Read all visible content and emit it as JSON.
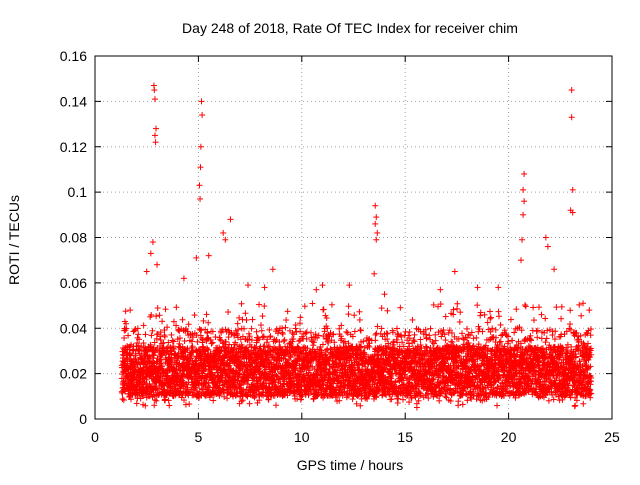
{
  "chart_data": {
    "type": "scatter",
    "title": "Day 248 of 2018, Rate Of TEC Index for receiver chim",
    "xlabel": "GPS time / hours",
    "ylabel": "ROTI / TECUs",
    "xlim": [
      0,
      25
    ],
    "ylim": [
      0,
      0.16
    ],
    "xticks": [
      0,
      5,
      10,
      15,
      20,
      25
    ],
    "xtick_labels": [
      "0",
      "5",
      "10",
      "15",
      "20",
      "25"
    ],
    "yticks": [
      0,
      0.02,
      0.04,
      0.06,
      0.08,
      0.1,
      0.12,
      0.14,
      0.16
    ],
    "ytick_labels": [
      "0",
      "0.02",
      "0.04",
      "0.06",
      "0.08",
      "0.1",
      "0.12",
      "0.14",
      "0.16"
    ],
    "grid": true,
    "marker": "+",
    "color": "#ff0000",
    "data_range_hours": [
      1.3,
      24.0
    ],
    "series": [
      {
        "name": "ROTI",
        "points": [
          [
            2.85,
            0.147
          ],
          [
            2.87,
            0.145
          ],
          [
            2.9,
            0.141
          ],
          [
            2.95,
            0.128
          ],
          [
            2.9,
            0.125
          ],
          [
            2.93,
            0.122
          ],
          [
            5.15,
            0.14
          ],
          [
            5.18,
            0.134
          ],
          [
            5.12,
            0.12
          ],
          [
            5.1,
            0.111
          ],
          [
            5.05,
            0.103
          ],
          [
            5.08,
            0.097
          ],
          [
            6.55,
            0.088
          ],
          [
            6.2,
            0.082
          ],
          [
            6.3,
            0.079
          ],
          [
            13.55,
            0.094
          ],
          [
            13.6,
            0.089
          ],
          [
            13.55,
            0.086
          ],
          [
            13.65,
            0.082
          ],
          [
            13.6,
            0.079
          ],
          [
            13.5,
            0.064
          ],
          [
            20.75,
            0.108
          ],
          [
            20.7,
            0.101
          ],
          [
            20.75,
            0.096
          ],
          [
            20.7,
            0.09
          ],
          [
            20.65,
            0.079
          ],
          [
            20.6,
            0.07
          ],
          [
            21.8,
            0.08
          ],
          [
            21.9,
            0.076
          ],
          [
            23.05,
            0.145
          ],
          [
            23.05,
            0.133
          ],
          [
            23.1,
            0.101
          ],
          [
            23.0,
            0.092
          ],
          [
            23.1,
            0.091
          ],
          [
            2.8,
            0.078
          ],
          [
            2.7,
            0.073
          ],
          [
            3.0,
            0.068
          ],
          [
            4.9,
            0.071
          ],
          [
            5.5,
            0.072
          ],
          [
            8.6,
            0.066
          ],
          [
            8.2,
            0.058
          ],
          [
            11.0,
            0.059
          ],
          [
            12.3,
            0.059
          ],
          [
            17.4,
            0.065
          ],
          [
            18.5,
            0.058
          ],
          [
            22.2,
            0.066
          ],
          [
            2.5,
            0.065
          ],
          [
            4.3,
            0.062
          ],
          [
            7.4,
            0.059
          ],
          [
            10.7,
            0.057
          ],
          [
            14.0,
            0.055
          ],
          [
            16.7,
            0.057
          ],
          [
            19.5,
            0.058
          ],
          [
            23.6,
            0.051
          ],
          [
            23.9,
            0.048
          ],
          [
            1.5,
            0.042
          ],
          [
            1.7,
            0.048
          ]
        ]
      }
    ]
  }
}
